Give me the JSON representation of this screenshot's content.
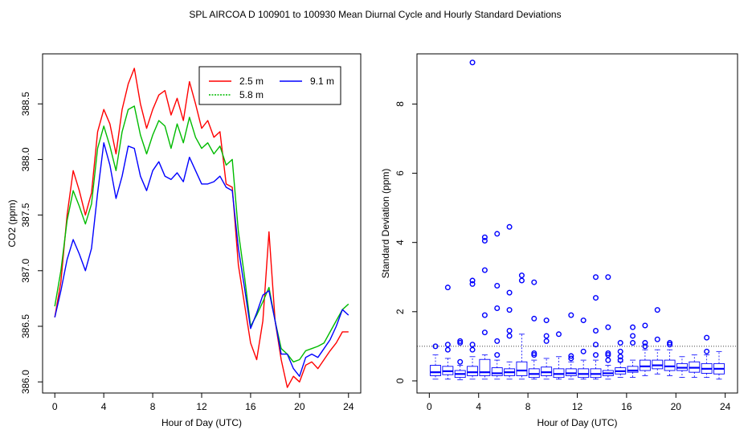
{
  "title": "SPL   AIRCOA D   100901 to 100930   Mean Diurnal Cycle and Hourly Standard Deviations",
  "chart_data": [
    {
      "type": "line",
      "xlabel": "Hour of Day (UTC)",
      "ylabel": "CO2 (ppm)",
      "xlim": [
        -1,
        25
      ],
      "ylim": [
        385.9,
        388.95
      ],
      "xticks": [
        0,
        4,
        8,
        12,
        16,
        20,
        24
      ],
      "yticks": [
        386.0,
        386.5,
        387.0,
        387.5,
        388.0,
        388.5
      ],
      "ytick_labels": [
        "386.0",
        "386.5",
        "387.0",
        "387.5",
        "388.0",
        "388.5"
      ],
      "legend": {
        "position": "top-right",
        "labels": [
          "2.5 m",
          "5.8 m",
          "9.1 m"
        ]
      },
      "series": [
        {
          "name": "2.5 m",
          "color": "#ff0000",
          "x": [
            0,
            0.5,
            1,
            1.5,
            2,
            2.5,
            3,
            3.5,
            4,
            4.5,
            5,
            5.5,
            6,
            6.5,
            7,
            7.5,
            8,
            8.5,
            9,
            9.5,
            10,
            10.5,
            11,
            11.5,
            12,
            12.5,
            13,
            13.5,
            14,
            14.5,
            15,
            15.5,
            16,
            16.5,
            17,
            17.5,
            18,
            18.5,
            19,
            19.5,
            20,
            20.5,
            21,
            21.5,
            22,
            22.5,
            23,
            23.5,
            24
          ],
          "y": [
            386.58,
            386.9,
            387.5,
            387.9,
            387.72,
            387.5,
            387.7,
            388.25,
            388.45,
            388.32,
            388.05,
            388.45,
            388.68,
            388.82,
            388.5,
            388.28,
            388.45,
            388.58,
            388.62,
            388.4,
            388.55,
            388.35,
            388.7,
            388.5,
            388.28,
            388.35,
            388.2,
            388.25,
            387.78,
            387.75,
            387.05,
            386.7,
            386.35,
            386.2,
            386.55,
            387.35,
            386.55,
            386.2,
            385.95,
            386.05,
            386.0,
            386.15,
            386.18,
            386.12,
            386.2,
            386.28,
            386.35,
            386.45,
            386.45
          ]
        },
        {
          "name": "5.8 m",
          "color": "#00bb00",
          "x": [
            0,
            0.5,
            1,
            1.5,
            2,
            2.5,
            3,
            3.5,
            4,
            4.5,
            5,
            5.5,
            6,
            6.5,
            7,
            7.5,
            8,
            8.5,
            9,
            9.5,
            10,
            10.5,
            11,
            11.5,
            12,
            12.5,
            13,
            13.5,
            14,
            14.5,
            15,
            15.5,
            16,
            16.5,
            17,
            17.5,
            18,
            18.5,
            19,
            19.5,
            20,
            20.5,
            21,
            21.5,
            22,
            22.5,
            23,
            23.5,
            24
          ],
          "y": [
            386.68,
            387.0,
            387.45,
            387.72,
            387.58,
            387.42,
            387.6,
            388.1,
            388.3,
            388.12,
            387.9,
            388.25,
            388.45,
            388.48,
            388.22,
            388.05,
            388.22,
            388.35,
            388.3,
            388.1,
            388.32,
            388.15,
            388.38,
            388.2,
            388.1,
            388.15,
            388.05,
            388.12,
            387.95,
            388.0,
            387.35,
            386.95,
            386.5,
            386.6,
            386.72,
            386.85,
            386.55,
            386.3,
            386.25,
            386.18,
            386.2,
            386.28,
            386.3,
            386.32,
            386.35,
            386.45,
            386.55,
            386.65,
            386.7
          ]
        },
        {
          "name": "9.1 m",
          "color": "#0000ff",
          "x": [
            0,
            0.5,
            1,
            1.5,
            2,
            2.5,
            3,
            3.5,
            4,
            4.5,
            5,
            5.5,
            6,
            6.5,
            7,
            7.5,
            8,
            8.5,
            9,
            9.5,
            10,
            10.5,
            11,
            11.5,
            12,
            12.5,
            13,
            13.5,
            14,
            14.5,
            15,
            15.5,
            16,
            16.5,
            17,
            17.5,
            18,
            18.5,
            19,
            19.5,
            20,
            20.5,
            21,
            21.5,
            22,
            22.5,
            23,
            23.5,
            24
          ],
          "y": [
            386.58,
            386.82,
            387.1,
            387.28,
            387.15,
            387.0,
            387.2,
            387.7,
            388.15,
            387.95,
            387.65,
            387.85,
            388.12,
            388.1,
            387.85,
            387.72,
            387.9,
            387.98,
            387.85,
            387.82,
            387.88,
            387.8,
            388.02,
            387.9,
            387.78,
            387.78,
            387.8,
            387.85,
            387.75,
            387.72,
            387.2,
            386.85,
            386.48,
            386.62,
            386.78,
            386.82,
            386.55,
            386.25,
            386.25,
            386.12,
            386.05,
            386.22,
            386.25,
            386.22,
            386.3,
            386.38,
            386.5,
            386.65,
            386.6
          ]
        }
      ]
    },
    {
      "type": "boxplot",
      "xlabel": "Hour of Day (UTC)",
      "ylabel": "Standard Deviation (ppm)",
      "xlim": [
        -1,
        25
      ],
      "ylim": [
        -0.35,
        9.45
      ],
      "xticks": [
        0,
        4,
        8,
        12,
        16,
        20,
        24
      ],
      "yticks": [
        0,
        2,
        4,
        6,
        8
      ],
      "reference_line": 1.0,
      "boxes": [
        {
          "hour": 0.5,
          "min": 0.05,
          "q1": 0.15,
          "median": 0.25,
          "q3": 0.45,
          "max": 0.75,
          "outliers": [
            1.0
          ]
        },
        {
          "hour": 1.5,
          "min": 0.05,
          "q1": 0.18,
          "median": 0.28,
          "q3": 0.42,
          "max": 0.65,
          "outliers": [
            0.9,
            1.05,
            2.7
          ]
        },
        {
          "hour": 2.5,
          "min": 0.03,
          "q1": 0.1,
          "median": 0.2,
          "q3": 0.3,
          "max": 0.45,
          "outliers": [
            0.55,
            1.1,
            1.15
          ]
        },
        {
          "hour": 3.5,
          "min": 0.05,
          "q1": 0.15,
          "median": 0.25,
          "q3": 0.42,
          "max": 0.7,
          "outliers": [
            0.9,
            1.05,
            2.8,
            2.9,
            9.2
          ]
        },
        {
          "hour": 4.5,
          "min": 0.05,
          "q1": 0.15,
          "median": 0.25,
          "q3": 0.62,
          "max": 0.75,
          "outliers": [
            1.4,
            1.9,
            3.2,
            4.05,
            4.15
          ]
        },
        {
          "hour": 5.5,
          "min": 0.05,
          "q1": 0.15,
          "median": 0.22,
          "q3": 0.38,
          "max": 0.6,
          "outliers": [
            0.75,
            1.15,
            2.1,
            2.75,
            4.25
          ]
        },
        {
          "hour": 6.5,
          "min": 0.05,
          "q1": 0.15,
          "median": 0.25,
          "q3": 0.35,
          "max": 0.55,
          "outliers": [
            1.3,
            1.45,
            2.05,
            2.55,
            4.45
          ]
        },
        {
          "hour": 7.5,
          "min": 0.05,
          "q1": 0.15,
          "median": 0.3,
          "q3": 0.55,
          "max": 1.35,
          "outliers": [
            2.9,
            3.05
          ]
        },
        {
          "hour": 8.5,
          "min": 0.05,
          "q1": 0.1,
          "median": 0.2,
          "q3": 0.35,
          "max": 0.6,
          "outliers": [
            0.75,
            0.8,
            1.8,
            2.85
          ]
        },
        {
          "hour": 9.5,
          "min": 0.05,
          "q1": 0.15,
          "median": 0.25,
          "q3": 0.4,
          "max": 0.65,
          "outliers": [
            1.15,
            1.3,
            1.75
          ]
        },
        {
          "hour": 10.5,
          "min": 0.05,
          "q1": 0.1,
          "median": 0.2,
          "q3": 0.35,
          "max": 0.7,
          "outliers": [
            1.35
          ]
        },
        {
          "hour": 11.5,
          "min": 0.05,
          "q1": 0.15,
          "median": 0.22,
          "q3": 0.35,
          "max": 0.55,
          "outliers": [
            0.65,
            0.72,
            1.9
          ]
        },
        {
          "hour": 12.5,
          "min": 0.05,
          "q1": 0.1,
          "median": 0.2,
          "q3": 0.35,
          "max": 0.6,
          "outliers": [
            0.85,
            1.75
          ]
        },
        {
          "hour": 13.5,
          "min": 0.05,
          "q1": 0.1,
          "median": 0.2,
          "q3": 0.35,
          "max": 0.6,
          "outliers": [
            0.75,
            1.05,
            1.45,
            2.4,
            3.0
          ]
        },
        {
          "hour": 14.5,
          "min": 0.05,
          "q1": 0.15,
          "median": 0.22,
          "q3": 0.3,
          "max": 0.45,
          "outliers": [
            0.6,
            0.75,
            0.8,
            1.55,
            3.0
          ]
        },
        {
          "hour": 15.5,
          "min": 0.1,
          "q1": 0.2,
          "median": 0.28,
          "q3": 0.38,
          "max": 0.55,
          "outliers": [
            0.6,
            0.7,
            0.85,
            1.1
          ]
        },
        {
          "hour": 16.5,
          "min": 0.1,
          "q1": 0.25,
          "median": 0.3,
          "q3": 0.42,
          "max": 0.6,
          "outliers": [
            1.1,
            1.3,
            1.55
          ]
        },
        {
          "hour": 17.5,
          "min": 0.15,
          "q1": 0.3,
          "median": 0.42,
          "q3": 0.6,
          "max": 0.9,
          "outliers": [
            1.0,
            1.1,
            1.6
          ]
        },
        {
          "hour": 18.5,
          "min": 0.2,
          "q1": 0.35,
          "median": 0.45,
          "q3": 0.6,
          "max": 0.9,
          "outliers": [
            1.2,
            2.05
          ]
        },
        {
          "hour": 19.5,
          "min": 0.15,
          "q1": 0.3,
          "median": 0.42,
          "q3": 0.6,
          "max": 0.9,
          "outliers": [
            1.05,
            1.1
          ]
        },
        {
          "hour": 20.5,
          "min": 0.1,
          "q1": 0.3,
          "median": 0.38,
          "q3": 0.5,
          "max": 0.7,
          "outliers": []
        },
        {
          "hour": 21.5,
          "min": 0.1,
          "q1": 0.25,
          "median": 0.38,
          "q3": 0.55,
          "max": 0.75,
          "outliers": []
        },
        {
          "hour": 22.5,
          "min": 0.1,
          "q1": 0.22,
          "median": 0.35,
          "q3": 0.5,
          "max": 0.75,
          "outliers": [
            0.85,
            1.25
          ]
        },
        {
          "hour": 23.5,
          "min": 0.05,
          "q1": 0.2,
          "median": 0.35,
          "q3": 0.5,
          "max": 0.85,
          "outliers": []
        }
      ]
    }
  ]
}
